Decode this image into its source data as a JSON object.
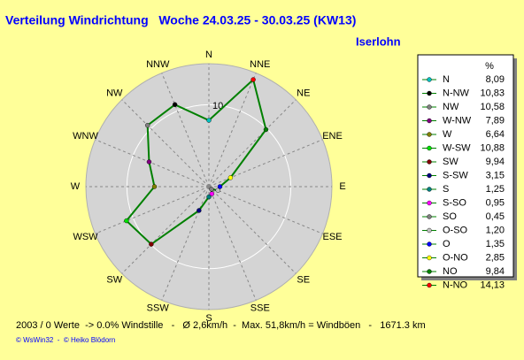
{
  "chart_data": {
    "type": "radar",
    "title": "Verteilung Windrichtung   Woche 24.03.25 - 30.03.25 (KW13)",
    "location": "Iserlohn",
    "legend_header": "%",
    "axis_labels": [
      "N",
      "NNE",
      "NE",
      "ENE",
      "E",
      "ESE",
      "SE",
      "SSE",
      "S",
      "SSW",
      "SW",
      "WSW",
      "W",
      "WNW",
      "NW",
      "NNW"
    ],
    "categories": [
      "N",
      "N-NW",
      "NW",
      "W-NW",
      "W",
      "W-SW",
      "SW",
      "S-SW",
      "S",
      "S-SO",
      "SO",
      "O-SO",
      "O",
      "O-NO",
      "NO",
      "N-NO"
    ],
    "values": [
      8.09,
      10.83,
      10.58,
      7.89,
      6.64,
      10.88,
      9.94,
      3.15,
      1.25,
      0.95,
      0.45,
      1.2,
      1.35,
      2.85,
      9.84,
      14.13
    ],
    "value_labels": [
      "8,09",
      "10,83",
      "10,58",
      "7,89",
      "6,64",
      "10,88",
      "9,94",
      "3,15",
      "1,25",
      "0,95",
      "0,45",
      "1,20",
      "1,35",
      "2,85",
      "9,84",
      "14,13"
    ],
    "colors": [
      "#00c0c0",
      "#000000",
      "#808080",
      "#800080",
      "#808000",
      "#00e000",
      "#800000",
      "#000080",
      "#008080",
      "#ff00ff",
      "#808080",
      "#c0c0c0",
      "#0000ff",
      "#ffff00",
      "#008000",
      "#ff0000"
    ],
    "color": "#008000",
    "rlim": [
      0,
      15
    ],
    "rticks": [
      10
    ],
    "footer": "2003 / 0 Werte  -> 0.0% Windstille   -   Ø 2,6km/h  -  Max. 51,8km/h = Windböen   -   1671.3 km",
    "credit": "© WsWin32  -  © Heiko Blödorn"
  }
}
